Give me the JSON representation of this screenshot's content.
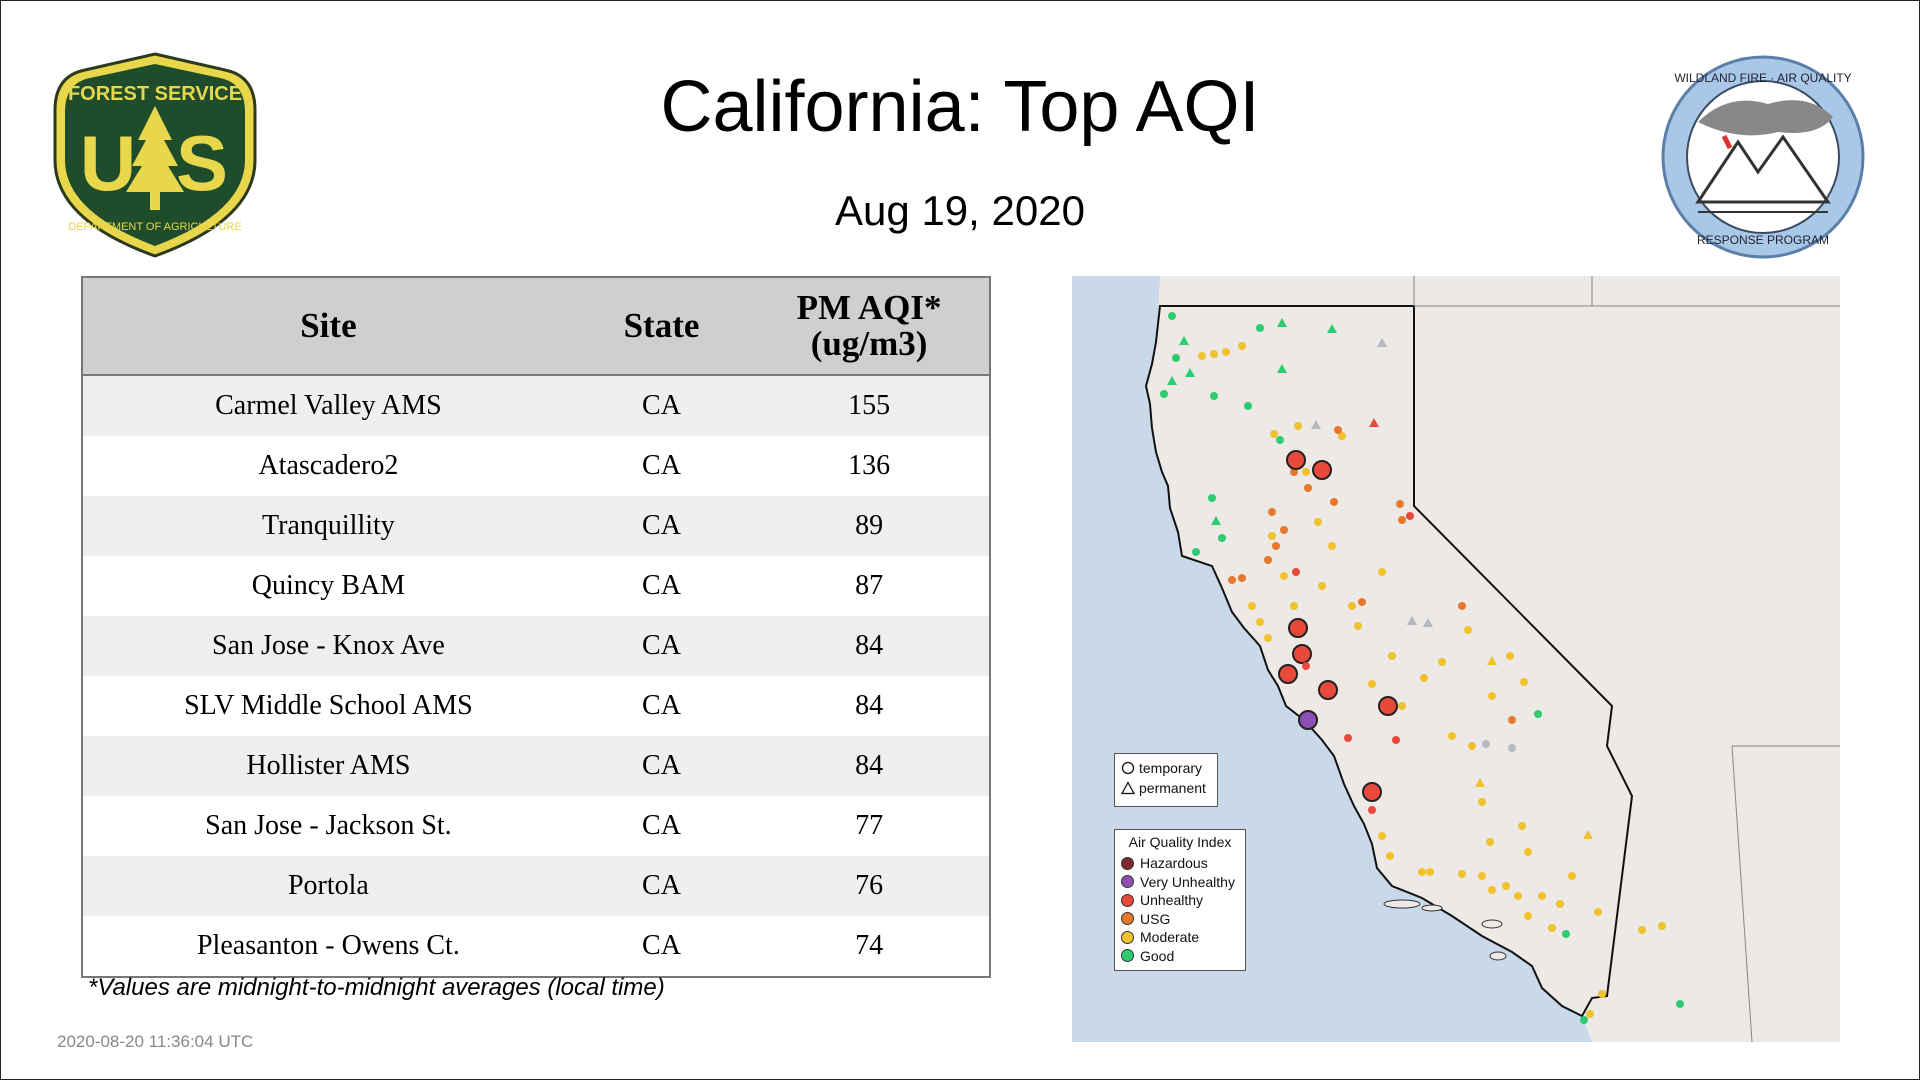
{
  "title": "California: Top AQI",
  "date": "Aug 19, 2020",
  "logos": {
    "forest_service": {
      "top": "FOREST SERVICE",
      "letters": "US",
      "bottom": "DEPARTMENT OF AGRICULTURE"
    },
    "wildland": {
      "top": "WILDLAND FIRE · AIR QUALITY",
      "bottom": "RESPONSE PROGRAM"
    }
  },
  "table": {
    "headers": {
      "site": "Site",
      "state": "State",
      "aqi_line1": "PM AQI*",
      "aqi_line2": "(ug/m3)"
    },
    "rows": [
      {
        "site": "Carmel Valley AMS",
        "state": "CA",
        "aqi": "155"
      },
      {
        "site": "Atascadero2",
        "state": "CA",
        "aqi": "136"
      },
      {
        "site": "Tranquillity",
        "state": "CA",
        "aqi": "89"
      },
      {
        "site": "Quincy BAM",
        "state": "CA",
        "aqi": "87"
      },
      {
        "site": "San Jose - Knox Ave",
        "state": "CA",
        "aqi": "84"
      },
      {
        "site": "SLV Middle School AMS",
        "state": "CA",
        "aqi": "84"
      },
      {
        "site": "Hollister AMS",
        "state": "CA",
        "aqi": "84"
      },
      {
        "site": "San Jose - Jackson St.",
        "state": "CA",
        "aqi": "77"
      },
      {
        "site": "Portola",
        "state": "CA",
        "aqi": "76"
      },
      {
        "site": "Pleasanton - Owens Ct.",
        "state": "CA",
        "aqi": "74"
      }
    ]
  },
  "footnote": "*Values are midnight-to-midnight averages (local time)",
  "timestamp": "2020-08-20 11:36:04 UTC",
  "map": {
    "legend_shape": {
      "temporary": "temporary",
      "permanent": "permanent"
    },
    "legend_aqi": {
      "title": "Air Quality Index",
      "items": [
        {
          "label": "Hazardous",
          "color": "#7e2b2b"
        },
        {
          "label": "Very Unhealthy",
          "color": "#8e4fb5"
        },
        {
          "label": "Unhealthy",
          "color": "#e8493a"
        },
        {
          "label": "USG",
          "color": "#e8782a"
        },
        {
          "label": "Moderate",
          "color": "#f2c12e"
        },
        {
          "label": "Good",
          "color": "#2ecc71"
        }
      ]
    },
    "colors": {
      "water": "#c9d9ea",
      "land": "#ece9e6",
      "grey_site": "#b5b8bf"
    }
  }
}
